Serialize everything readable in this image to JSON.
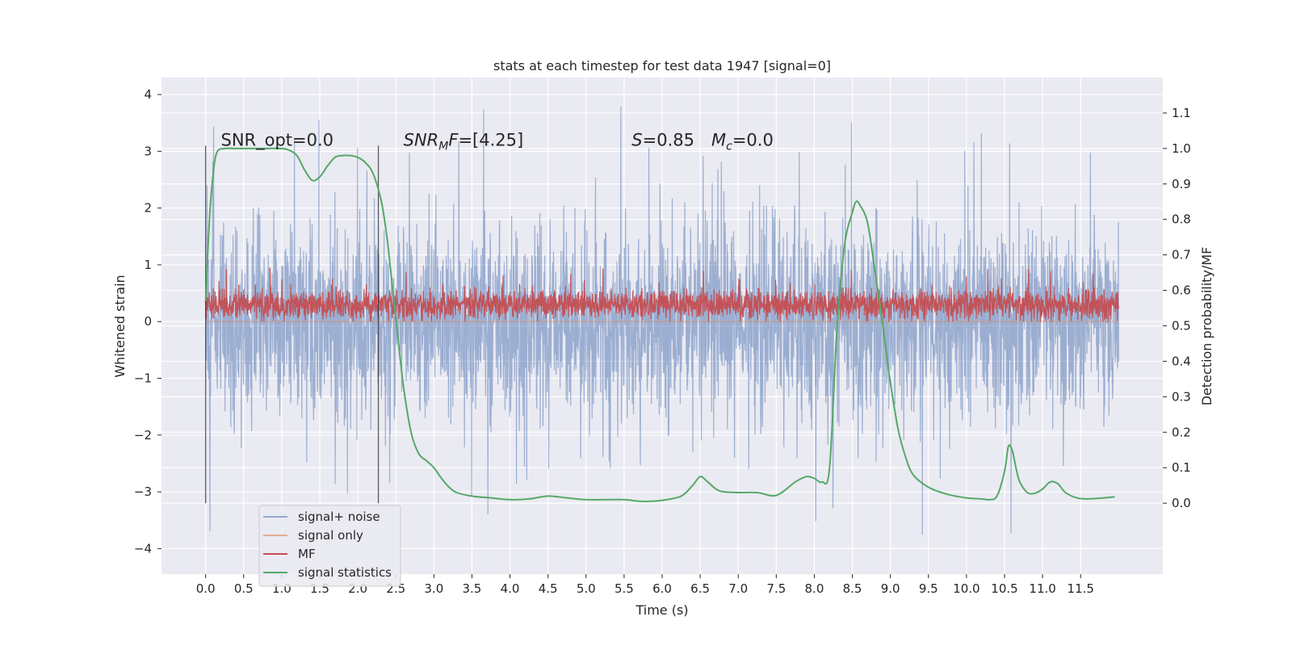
{
  "chart_data": {
    "type": "line",
    "title": "stats at each timestep for test data 1947 [signal=0]",
    "xlabel": "Time (s)",
    "ylabel_left": "Whitened strain",
    "ylabel_right": "Detection probability/MF",
    "xlim": [
      -0.58,
      12.58
    ],
    "ylim_left": [
      -4.45,
      4.3
    ],
    "ylim_right": [
      -0.2,
      1.2
    ],
    "x_ticks": [
      0.0,
      0.5,
      1.0,
      1.5,
      2.0,
      2.5,
      3.0,
      3.5,
      4.0,
      4.5,
      5.0,
      5.5,
      6.0,
      6.5,
      7.0,
      7.5,
      8.0,
      8.5,
      9.0,
      9.5,
      10.0,
      10.5,
      11.0,
      11.5
    ],
    "x_tick_labels": [
      "0.0",
      "0.5",
      "1.0",
      "1.5",
      "2.0",
      "2.5",
      "3.0",
      "3.5",
      "4.0",
      "4.5",
      "5.0",
      "5.5",
      "6.0",
      "6.5",
      "7.0",
      "7.5",
      "8.0",
      "8.5",
      "9.0",
      "9.5",
      "10.0",
      "10.5",
      "11.0",
      "11.5"
    ],
    "y_left_ticks": [
      -4,
      -3,
      -2,
      -1,
      0,
      1,
      2,
      3,
      4
    ],
    "y_left_tick_labels": [
      "−4",
      "−3",
      "−2",
      "−1",
      "0",
      "1",
      "2",
      "3",
      "4"
    ],
    "y_right_ticks": [
      0.0,
      0.1,
      0.2,
      0.3,
      0.4,
      0.5,
      0.6,
      0.7,
      0.8,
      0.9,
      1.0,
      1.1
    ],
    "y_right_tick_labels": [
      "0.0",
      "0.1",
      "0.2",
      "0.3",
      "0.4",
      "0.5",
      "0.6",
      "0.7",
      "0.8",
      "0.9",
      "1.0",
      "1.1"
    ],
    "grid": true,
    "legend_position": "lower-left",
    "series": [
      {
        "name": "signal+ noise",
        "color": "#4c72b0",
        "axis": "left",
        "style": "noise",
        "x_range": [
          0.0,
          12.0
        ],
        "envelope_typical": [
          -1.5,
          1.8
        ],
        "peaks_min": -4.1,
        "peaks_max": 3.95
      },
      {
        "name": "signal only",
        "color": "#dd8452",
        "axis": "left",
        "x_range": [
          0.0,
          12.0
        ],
        "values_constant": 0.0
      },
      {
        "name": "MF",
        "color": "#c44e52",
        "axis": "left",
        "style": "noise",
        "x_range": [
          0.0,
          12.0
        ],
        "envelope_typical": [
          0.05,
          0.55
        ],
        "peaks_max": 0.95
      },
      {
        "name": "signal statistics",
        "color": "#55a868",
        "axis": "right",
        "x": [
          0.0,
          0.05,
          0.1,
          0.15,
          0.25,
          0.4,
          0.6,
          0.8,
          1.0,
          1.1,
          1.2,
          1.3,
          1.4,
          1.5,
          1.6,
          1.7,
          1.8,
          1.9,
          2.0,
          2.1,
          2.2,
          2.3,
          2.35,
          2.4,
          2.5,
          2.6,
          2.7,
          2.8,
          2.9,
          3.0,
          3.1,
          3.2,
          3.3,
          3.5,
          3.75,
          4.0,
          4.25,
          4.5,
          4.75,
          5.0,
          5.25,
          5.5,
          5.75,
          6.0,
          6.25,
          6.4,
          6.5,
          6.6,
          6.75,
          7.0,
          7.25,
          7.5,
          7.75,
          7.9,
          8.0,
          8.1,
          8.2,
          8.3,
          8.4,
          8.5,
          8.55,
          8.6,
          8.7,
          8.8,
          8.9,
          9.0,
          9.1,
          9.2,
          9.3,
          9.5,
          9.75,
          10.0,
          10.2,
          10.3,
          10.4,
          10.5,
          10.55,
          10.6,
          10.65,
          10.7,
          10.8,
          10.9,
          11.0,
          11.1,
          11.2,
          11.3,
          11.45,
          11.6,
          11.8,
          11.95
        ],
        "values": [
          0.57,
          0.8,
          0.93,
          0.99,
          1.0,
          1.0,
          1.0,
          1.0,
          1.0,
          0.995,
          0.98,
          0.94,
          0.91,
          0.92,
          0.95,
          0.975,
          0.98,
          0.98,
          0.975,
          0.96,
          0.93,
          0.86,
          0.8,
          0.72,
          0.52,
          0.33,
          0.2,
          0.14,
          0.12,
          0.1,
          0.07,
          0.045,
          0.03,
          0.02,
          0.015,
          0.01,
          0.012,
          0.02,
          0.015,
          0.01,
          0.01,
          0.01,
          0.005,
          0.008,
          0.02,
          0.05,
          0.075,
          0.06,
          0.035,
          0.03,
          0.03,
          0.022,
          0.06,
          0.075,
          0.07,
          0.06,
          0.1,
          0.5,
          0.73,
          0.82,
          0.85,
          0.84,
          0.79,
          0.65,
          0.5,
          0.34,
          0.21,
          0.13,
          0.08,
          0.045,
          0.025,
          0.015,
          0.012,
          0.01,
          0.02,
          0.09,
          0.16,
          0.15,
          0.1,
          0.06,
          0.03,
          0.028,
          0.04,
          0.06,
          0.055,
          0.03,
          0.015,
          0.012,
          0.015,
          0.018
        ]
      }
    ],
    "vertical_lines": [
      {
        "x": 0.0,
        "y_range": [
          -3.2,
          3.1
        ]
      },
      {
        "x": 2.27,
        "y_range": [
          -3.2,
          3.1
        ]
      }
    ],
    "annotations": [
      {
        "text": "SNR_opt=0.0",
        "x": 0.2,
        "y": 3.1
      },
      {
        "text": "SNR_MF=[4.25]",
        "x": 2.6,
        "y": 3.1
      },
      {
        "text": "S=0.85   M_c=0.0",
        "x": 5.6,
        "y": 3.1
      }
    ]
  }
}
